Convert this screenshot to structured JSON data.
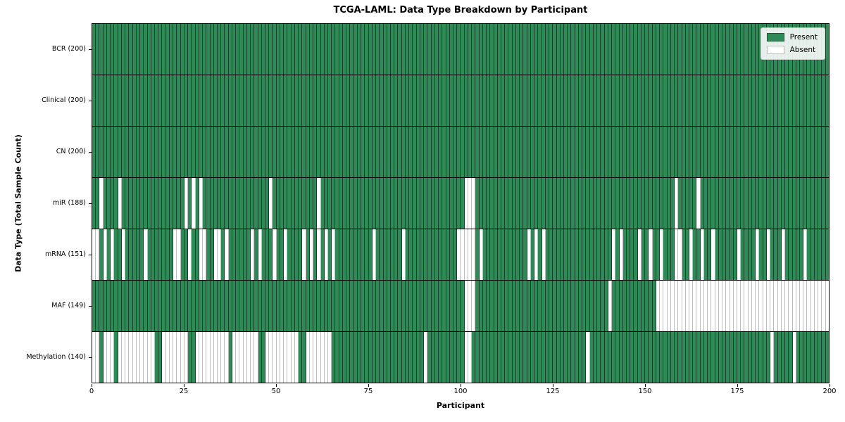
{
  "colors": {
    "present": "#2e8b57",
    "absent": "#ffffff",
    "present_edge": "#17402a",
    "absent_edge": "#bdbdbd",
    "row_divider": "#000000",
    "legend_border": "#cccccc"
  },
  "legend": {
    "present_label": "Present",
    "absent_label": "Absent"
  },
  "chart_data": {
    "type": "heatmap",
    "title": "TCGA-LAML: Data Type Breakdown by Participant",
    "xlabel": "Participant",
    "ylabel": "Data Type (Total Sample Count)",
    "legend_labels": [
      "Present",
      "Absent"
    ],
    "legend_position": "upper right",
    "grid": false,
    "n_participants": 200,
    "x_range": [
      0,
      200
    ],
    "x_ticks": [
      0,
      25,
      50,
      75,
      100,
      125,
      150,
      175,
      200
    ],
    "cell_values": {
      "present": 1,
      "absent": 0
    },
    "rows": [
      {
        "name": "BCR",
        "label": "BCR (200)",
        "total_samples": 200,
        "absent_participants": []
      },
      {
        "name": "Clinical",
        "label": "Clinical (200)",
        "total_samples": 200,
        "absent_participants": []
      },
      {
        "name": "CN",
        "label": "CN (200)",
        "total_samples": 200,
        "absent_participants": []
      },
      {
        "name": "miR",
        "label": "miR (188)",
        "total_samples": 188,
        "absent_participants": [
          2,
          7,
          25,
          27,
          29,
          48,
          61,
          101,
          102,
          103,
          158,
          164
        ]
      },
      {
        "name": "mRNA",
        "label": "mRNA (151)",
        "total_samples": 151,
        "absent_participants": [
          0,
          1,
          3,
          5,
          8,
          14,
          22,
          23,
          26,
          29,
          30,
          33,
          34,
          36,
          43,
          45,
          49,
          52,
          57,
          59,
          61,
          63,
          65,
          76,
          84,
          99,
          100,
          101,
          102,
          103,
          105,
          118,
          120,
          122,
          141,
          143,
          148,
          151,
          154,
          158,
          159,
          162,
          165,
          168,
          175,
          180,
          183,
          187,
          193
        ]
      },
      {
        "name": "MAF",
        "label": "MAF (149)",
        "total_samples": 149,
        "absent_participants": [
          101,
          102,
          103,
          140,
          153,
          154,
          155,
          156,
          157,
          158,
          159,
          160,
          161,
          162,
          163,
          164,
          165,
          166,
          167,
          168,
          169,
          170,
          171,
          172,
          173,
          174,
          175,
          176,
          177,
          178,
          179,
          180,
          181,
          182,
          183,
          184,
          185,
          186,
          187,
          188,
          189,
          190,
          191,
          192,
          193,
          194,
          195,
          196,
          197,
          198,
          199
        ]
      },
      {
        "name": "Methylation",
        "label": "Methylation (140)",
        "total_samples": 140,
        "absent_participants": [
          0,
          1,
          3,
          4,
          5,
          7,
          8,
          9,
          10,
          11,
          12,
          13,
          14,
          15,
          16,
          19,
          20,
          21,
          22,
          23,
          24,
          25,
          28,
          29,
          30,
          31,
          32,
          33,
          34,
          35,
          36,
          38,
          39,
          40,
          41,
          42,
          43,
          44,
          47,
          48,
          49,
          50,
          51,
          52,
          53,
          54,
          55,
          58,
          59,
          60,
          61,
          62,
          63,
          64,
          90,
          101,
          102,
          134,
          184,
          190
        ]
      }
    ]
  }
}
